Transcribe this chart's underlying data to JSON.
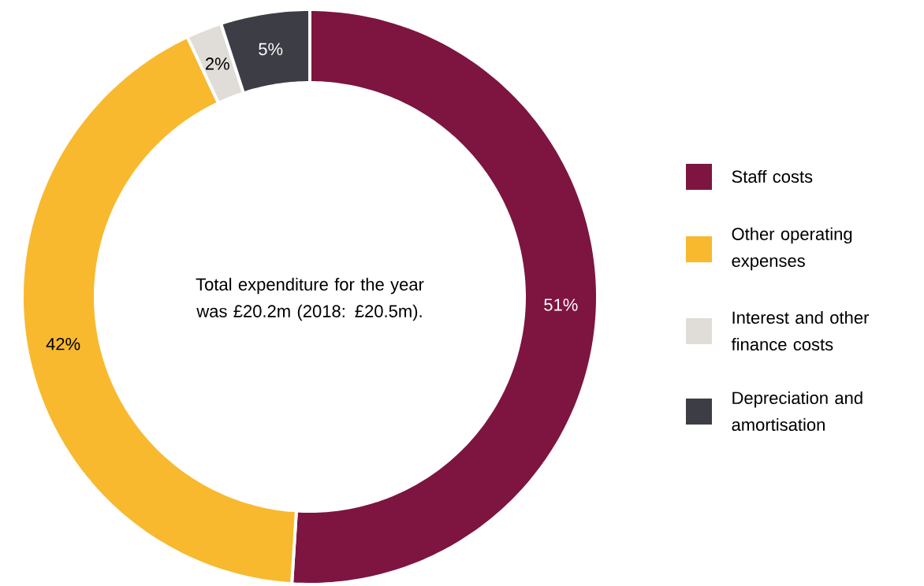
{
  "chart_data": {
    "type": "donut",
    "categories": [
      "Staff costs",
      "Other operating expenses",
      "Interest and other finance costs",
      "Depreciation and amortisation"
    ],
    "values": [
      51,
      42,
      2,
      5
    ],
    "colors": [
      "#7d1540",
      "#f8b92e",
      "#e0dcd8",
      "#3c3d45"
    ],
    "value_labels": [
      "51%",
      "42%",
      "2%",
      "5%"
    ],
    "annotations": [
      "Total expenditure for the year was £20.2m (2018: £20.5m)."
    ],
    "legend": "right"
  }
}
